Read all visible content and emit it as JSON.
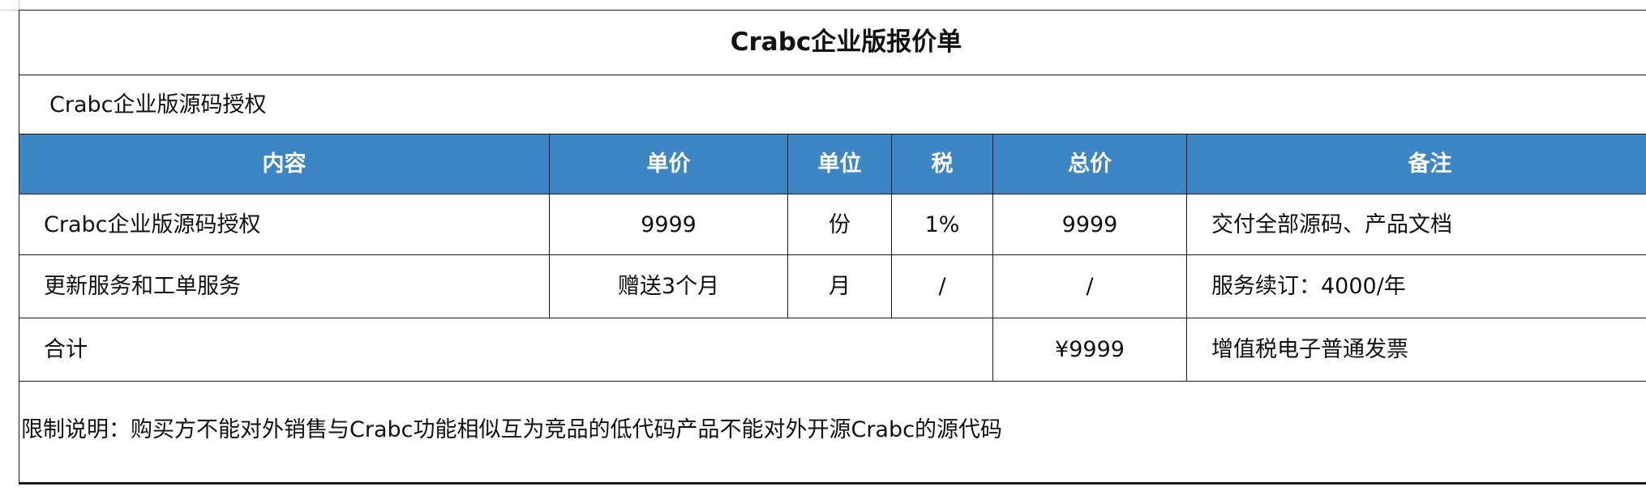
{
  "title": "Crabc企业版报价单",
  "subtitle": "Crabc企业版源码授权",
  "headers": {
    "content": "内容",
    "unit_price": "单价",
    "unit": "单位",
    "tax": "税",
    "total": "总价",
    "remark": "备注"
  },
  "rows": [
    {
      "content": "Crabc企业版源码授权",
      "unit_price": "9999",
      "unit": "份",
      "tax": "1%",
      "total": "9999",
      "remark": "交付全部源码、产品文档"
    },
    {
      "content": "更新服务和工单服务",
      "unit_price": "赠送3个月",
      "unit": "月",
      "tax": "/",
      "total": "/",
      "remark": "服务续订：4000/年"
    }
  ],
  "summary": {
    "label": "合计",
    "total": "¥9999",
    "remark": "增值税电子普通发票"
  },
  "note": "限制说明：购买方不能对外销售与Crabc功能相似互为竞品的低代码产品不能对外开源Crabc的源代码",
  "colors": {
    "header_bg": "#3d86c6",
    "header_text": "#ffffff",
    "border": "#1a1a1a"
  }
}
